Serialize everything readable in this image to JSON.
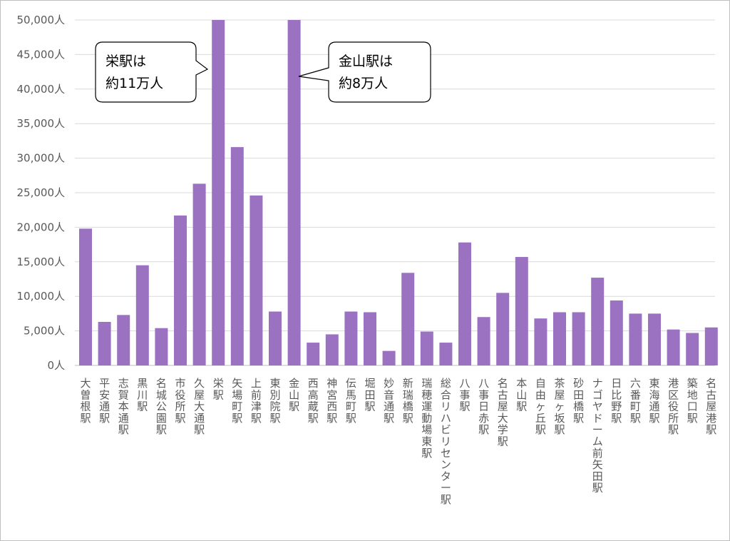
{
  "chart_data": {
    "type": "bar",
    "title": "",
    "xlabel": "",
    "ylabel": "",
    "ylim": [
      0,
      50000
    ],
    "y_tick_step": 5000,
    "y_tick_labels": [
      "0人",
      "5,000人",
      "10,000人",
      "15,000人",
      "20,000人",
      "25,000人",
      "30,000人",
      "35,000人",
      "40,000人",
      "45,000人",
      "50,000人"
    ],
    "grid": true,
    "bar_color": "#9b72c2",
    "grid_color": "#d9d9d9",
    "axis_color": "#bfbfbf",
    "categories": [
      "大曽根駅",
      "平安通駅",
      "志賀本通駅",
      "黒川駅",
      "名城公園駅",
      "市役所駅",
      "久屋大通駅",
      "栄駅",
      "矢場町駅",
      "上前津駅",
      "東別院駅",
      "金山駅",
      "西高蔵駅",
      "神宮西駅",
      "伝馬町駅",
      "堀田駅",
      "妙音通駅",
      "新瑞橋駅",
      "瑞穂運動場東駅",
      "総合リハビリセンター駅",
      "八事駅",
      "八事日赤駅",
      "名古屋大学駅",
      "本山駅",
      "自由ヶ丘駅",
      "茶屋ヶ坂駅",
      "砂田橋駅",
      "ナゴヤドーム前矢田駅",
      "日比野駅",
      "六番町駅",
      "東海通駅",
      "港区役所駅",
      "築地口駅",
      "名古屋港駅"
    ],
    "values": [
      19800,
      6300,
      7300,
      14500,
      5400,
      21700,
      26300,
      50000,
      31600,
      24600,
      7800,
      50000,
      3300,
      4500,
      7800,
      7700,
      2100,
      13400,
      4900,
      3300,
      17800,
      7000,
      10500,
      15700,
      6800,
      7700,
      7700,
      12700,
      9400,
      7500,
      7500,
      5200,
      4700,
      5500
    ],
    "annotations": [
      {
        "target": "栄駅",
        "line1": "栄駅は",
        "line2": "約11万人"
      },
      {
        "target": "金山駅",
        "line1": "金山駅は",
        "line2": "約8万人"
      }
    ]
  }
}
